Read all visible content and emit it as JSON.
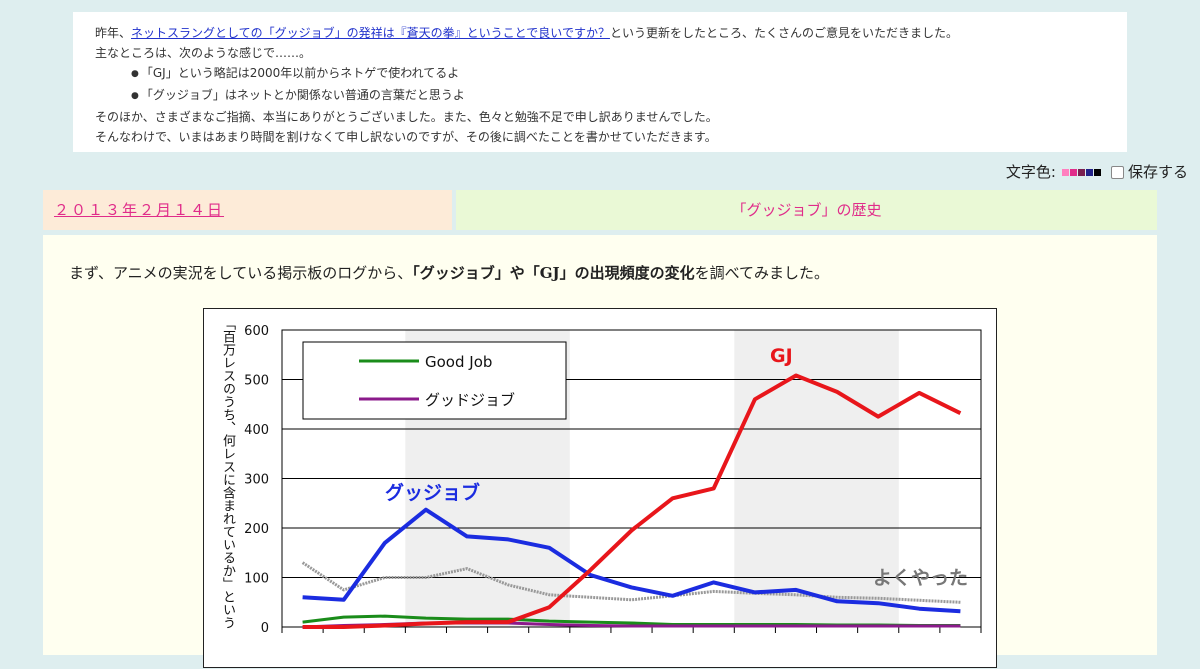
{
  "notice": {
    "line1_prefix": "昨年、",
    "line1_link": "ネットスラングとしての「グッジョブ」の発祥は『蒼天の拳』ということで良いですか？",
    "line1_suffix": "という更新をしたところ、たくさんのご意見をいただきました。",
    "line2": "主なところは、次のような感じで……。",
    "bullets": [
      "「GJ」という略記は2000年以前からネトゲで使われてるよ",
      "「グッジョブ」はネットとか関係ない普通の言葉だと思うよ"
    ],
    "line3": "そのほか、さまざまなご指摘、本当にありがとうございました。また、色々と勉強不足で申し訳ありませんでした。",
    "line4": "そんなわけで、いまはあまり時間を割けなくて申し訳ないのですが、その後に調べたことを書かせていただきます。"
  },
  "toolbar": {
    "color_label": "文字色:",
    "swatch_colors": [
      "#ff7fbf",
      "#e02c8a",
      "#7a1f4f",
      "#222288",
      "#000000"
    ],
    "save_label": "保存する"
  },
  "post": {
    "date": "２０１３年２月１４日",
    "title": "「グッジョブ」の歴史",
    "lead_prefix": "まず、アニメの実況をしている掲示板のログから、",
    "lead_bold": "「グッジョブ」や「GJ」の出現頻度の変化",
    "lead_suffix": "を調べてみました。"
  },
  "chart_data": {
    "type": "line",
    "ylabel": "「百万レスのうち、何レスに含まれているか」という",
    "ylim": [
      0,
      600
    ],
    "yticks": [
      0,
      100,
      200,
      300,
      400,
      500,
      600
    ],
    "series": [
      {
        "name": "GJ",
        "color": "#e8161b",
        "values": [
          0,
          0,
          3,
          7,
          10,
          10,
          40,
          115,
          195,
          260,
          280,
          460,
          508,
          475,
          425,
          473,
          432
        ]
      },
      {
        "name": "グッジョブ",
        "color": "#1b2ce0",
        "values": [
          60,
          55,
          170,
          237,
          183,
          177,
          160,
          105,
          80,
          63,
          90,
          70,
          75,
          52,
          48,
          37,
          32
        ]
      },
      {
        "name": "よくやった",
        "color": "#999999",
        "values": [
          130,
          75,
          100,
          100,
          118,
          85,
          65,
          60,
          55,
          63,
          72,
          68,
          65,
          60,
          58,
          54,
          50
        ]
      },
      {
        "name": "Good Job",
        "color": "#1a8c1a",
        "values": [
          10,
          20,
          22,
          18,
          16,
          16,
          12,
          10,
          8,
          5,
          5,
          5,
          5,
          4,
          4,
          3,
          3
        ]
      },
      {
        "name": "グッドジョブ",
        "color": "#8b1a8b",
        "values": [
          0,
          3,
          5,
          8,
          8,
          8,
          5,
          3,
          2,
          2,
          2,
          2,
          2,
          2,
          2,
          2,
          2
        ]
      }
    ],
    "legend": [
      "Good Job",
      "グッドジョブ"
    ],
    "annotations": [
      "GJ",
      "グッジョブ",
      "よくやった"
    ],
    "grid": true
  }
}
